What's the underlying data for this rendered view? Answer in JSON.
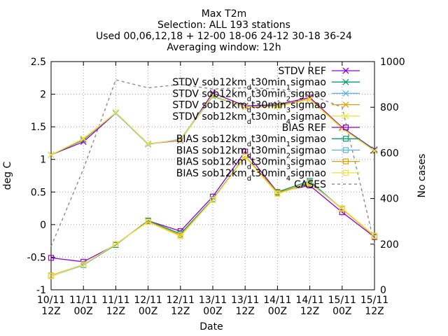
{
  "chart_data": {
    "type": "line",
    "title_lines": [
      "Max T2m",
      "Selection: ALL     193 stations",
      "Used 00,06,12,18 + 12-00 18-06 24-12 30-18 36-24",
      "Averaging window: 12h"
    ],
    "xlabel": "Date",
    "ylabel": "deg C",
    "y2label": "No cases",
    "x": [
      [
        "10/11",
        "12Z"
      ],
      [
        "11/11",
        "00Z"
      ],
      [
        "11/11",
        "12Z"
      ],
      [
        "12/11",
        "00Z"
      ],
      [
        "12/11",
        "12Z"
      ],
      [
        "13/11",
        "00Z"
      ],
      [
        "13/11",
        "12Z"
      ],
      [
        "14/11",
        "00Z"
      ],
      [
        "14/11",
        "12Z"
      ],
      [
        "15/11",
        "00Z"
      ],
      [
        "15/11",
        "12Z"
      ]
    ],
    "ylim": [
      -1,
      2.5
    ],
    "yticks": [
      "-1",
      "-0.5",
      "0",
      "0.5",
      "1",
      "1.5",
      "2",
      "2.5"
    ],
    "y2lim": [
      0,
      1000
    ],
    "y2ticks": [
      "0",
      "200",
      "400",
      "600",
      "800",
      "1000"
    ],
    "grid": true,
    "legend_position": "top-right",
    "series": [
      {
        "name": "STDV REF",
        "label_parts": [
          [
            "STDV REF",
            ""
          ]
        ],
        "color": "#9400d3",
        "marker": "x",
        "dash": false,
        "axis": "y1",
        "values": [
          1.07,
          1.27,
          1.71,
          1.24,
          1.29,
          2.02,
          1.82,
          1.84,
          1.95,
          1.49,
          1.15
        ]
      },
      {
        "name": "STDV sob12kmdt30min1sigmao",
        "label_parts": [
          [
            "STDV sob12km",
            ""
          ],
          [
            "d",
            "sub"
          ],
          [
            "t30min",
            ""
          ],
          [
            "1",
            "sub"
          ],
          [
            "sigmao",
            ""
          ]
        ],
        "color": "#009e73",
        "marker": "x",
        "dash": false,
        "axis": "y1",
        "values": [
          1.07,
          1.3,
          1.72,
          1.24,
          1.3,
          1.97,
          1.8,
          1.83,
          1.92,
          1.48,
          1.14
        ]
      },
      {
        "name": "STDV sob12kmdt30min2sigmao",
        "label_parts": [
          [
            "STDV sob12km",
            ""
          ],
          [
            "d",
            "sub"
          ],
          [
            "t30min",
            ""
          ],
          [
            "2",
            "sub"
          ],
          [
            "sigmao",
            ""
          ]
        ],
        "color": "#56b4e9",
        "marker": "x",
        "dash": false,
        "axis": "y1",
        "values": [
          1.07,
          1.31,
          1.71,
          1.23,
          1.31,
          1.98,
          1.8,
          1.82,
          1.93,
          1.48,
          1.13
        ]
      },
      {
        "name": "STDV sob12kmdt30min3sigmao",
        "label_parts": [
          [
            "STDV sob12km",
            ""
          ],
          [
            "d",
            "sub"
          ],
          [
            "t30min",
            ""
          ],
          [
            "3",
            "sub"
          ],
          [
            "sigmao",
            ""
          ]
        ],
        "color": "#e69f00",
        "marker": "x",
        "dash": false,
        "axis": "y1",
        "values": [
          1.07,
          1.31,
          1.72,
          1.24,
          1.3,
          1.98,
          1.8,
          1.82,
          1.93,
          1.48,
          1.13
        ]
      },
      {
        "name": "STDV sob12kmdt30min4sigmao",
        "label_parts": [
          [
            "STDV sob12km",
            ""
          ],
          [
            "d",
            "sub"
          ],
          [
            "t30min",
            ""
          ],
          [
            "4",
            "sub"
          ],
          [
            "sigmao",
            ""
          ]
        ],
        "color": "#f0e442",
        "marker": "x",
        "dash": false,
        "axis": "y1",
        "values": [
          1.07,
          1.32,
          1.72,
          1.24,
          1.3,
          1.98,
          1.8,
          1.81,
          1.92,
          1.47,
          1.13
        ]
      },
      {
        "name": "BIAS REF",
        "label_parts": [
          [
            "BIAS REF",
            ""
          ]
        ],
        "color": "#9400d3",
        "marker": "square",
        "dash": false,
        "axis": "y1",
        "values": [
          -0.51,
          -0.57,
          -0.31,
          0.06,
          -0.1,
          0.43,
          1.12,
          0.5,
          0.6,
          0.19,
          -0.19
        ]
      },
      {
        "name": "BIAS sob12kmdt30min1sigmao",
        "label_parts": [
          [
            "BIAS sob12km",
            ""
          ],
          [
            "d",
            "sub"
          ],
          [
            "t30min",
            ""
          ],
          [
            "1",
            "sub"
          ],
          [
            "sigmao",
            ""
          ]
        ],
        "color": "#009e73",
        "marker": "square",
        "dash": false,
        "axis": "y1",
        "values": [
          -0.79,
          -0.62,
          -0.31,
          0.06,
          -0.14,
          0.39,
          1.05,
          0.5,
          0.67,
          0.24,
          -0.17
        ]
      },
      {
        "name": "BIAS sob12kmdt30min2sigmao",
        "label_parts": [
          [
            "BIAS sob12km",
            ""
          ],
          [
            "d",
            "sub"
          ],
          [
            "t30min",
            ""
          ],
          [
            "2",
            "sub"
          ],
          [
            "sigmao",
            ""
          ]
        ],
        "color": "#56b4e9",
        "marker": "square",
        "dash": false,
        "axis": "y1",
        "values": [
          -0.79,
          -0.62,
          -0.3,
          0.05,
          -0.16,
          0.38,
          1.04,
          0.48,
          0.65,
          0.25,
          -0.18
        ]
      },
      {
        "name": "BIAS sob12kmdt30min3sigmao",
        "label_parts": [
          [
            "BIAS sob12km",
            ""
          ],
          [
            "d",
            "sub"
          ],
          [
            "t30min",
            ""
          ],
          [
            "3",
            "sub"
          ],
          [
            "sigmao",
            ""
          ]
        ],
        "color": "#e69f00",
        "marker": "square",
        "dash": false,
        "axis": "y1",
        "values": [
          -0.78,
          -0.61,
          -0.3,
          0.05,
          -0.16,
          0.38,
          1.05,
          0.49,
          0.64,
          0.24,
          -0.18
        ]
      },
      {
        "name": "BIAS sob12kmdt30min4sigmao",
        "label_parts": [
          [
            "BIAS sob12km",
            ""
          ],
          [
            "d",
            "sub"
          ],
          [
            "t30min",
            ""
          ],
          [
            "4",
            "sub"
          ],
          [
            "sigmao",
            ""
          ]
        ],
        "color": "#f0e442",
        "marker": "square",
        "dash": false,
        "axis": "y1",
        "values": [
          -0.79,
          -0.61,
          -0.3,
          0.04,
          -0.18,
          0.38,
          1.04,
          0.47,
          0.63,
          0.25,
          -0.17
        ]
      },
      {
        "name": "CASES",
        "label_parts": [
          [
            "CASES",
            ""
          ]
        ],
        "color": "#909090",
        "marker": "none",
        "dash": true,
        "axis": "y2",
        "values": [
          190,
          530,
          920,
          885,
          900,
          880,
          885,
          880,
          855,
          800,
          200
        ]
      }
    ]
  }
}
